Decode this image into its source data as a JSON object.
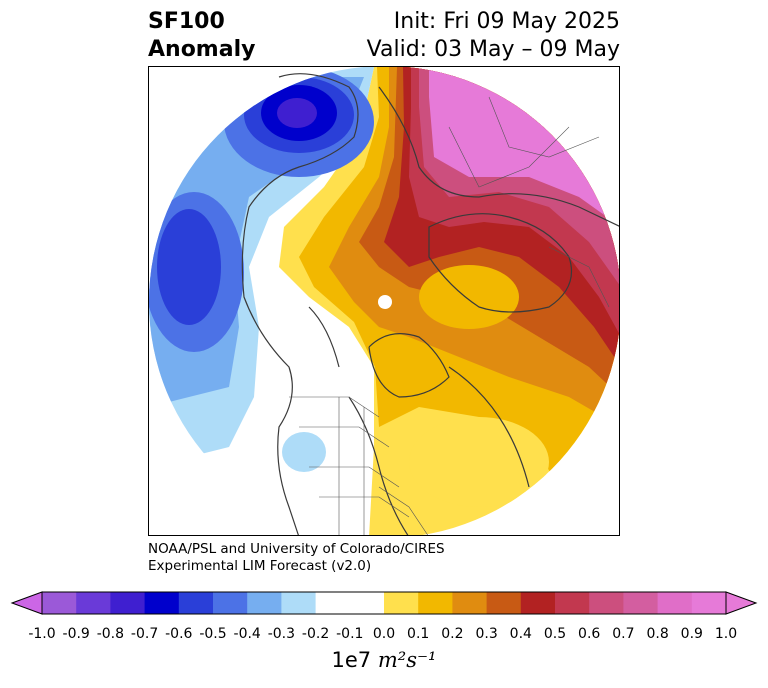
{
  "title": {
    "left_line1": "SF100",
    "left_line2": "Anomaly",
    "right_line1": "Init: Fri 09 May 2025",
    "right_line2": "Valid: 03 May – 09 May"
  },
  "credit": {
    "line1": "NOAA/PSL and University of Colorado/CIRES",
    "line2": "Experimental LIM Forecast (v2.0)"
  },
  "colorbar": {
    "ticks": [
      "-1.0",
      "-0.9",
      "-0.8",
      "-0.7",
      "-0.6",
      "-0.5",
      "-0.4",
      "-0.3",
      "-0.2",
      "-0.1",
      "0.0",
      "0.1",
      "0.2",
      "0.3",
      "0.4",
      "0.5",
      "0.6",
      "0.7",
      "0.8",
      "0.9",
      "1.0"
    ],
    "colors": [
      "#9b59d8",
      "#6a3ad8",
      "#3f1fd0",
      "#0000cc",
      "#2a3fd8",
      "#4c72e6",
      "#76aef0",
      "#aedcf8",
      "#ffffff",
      "#ffffff",
      "#ffe04d",
      "#f2b800",
      "#e08c10",
      "#c85a14",
      "#b22222",
      "#c2384f",
      "#cc4f7e",
      "#d35ea0",
      "#e06ec8",
      "#e67ad8"
    ],
    "under_color": "#cc66e6",
    "over_color": "#e67ad8",
    "units_prefix": "1e7",
    "units_math": "m²s⁻¹"
  },
  "map": {
    "projection": "north-polar-stereographic",
    "palette": {
      "pink": "#e67ad8",
      "magenta": "#cc4f7e",
      "rose": "#c2384f",
      "red": "#b22222",
      "rust": "#c85a14",
      "orange": "#e08c10",
      "gold": "#f2b800",
      "yellow": "#ffe04d",
      "lightblue": "#aedcf8",
      "skyblue": "#76aef0",
      "blue": "#4c72e6",
      "royal": "#2a3fd8",
      "deep": "#0000cc",
      "violet": "#3f1fd0"
    }
  }
}
